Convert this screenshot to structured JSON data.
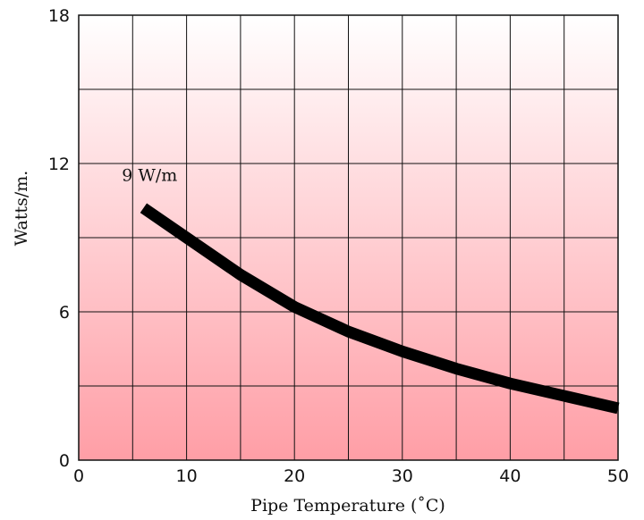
{
  "chart_data": {
    "type": "line",
    "title": "",
    "xlabel": "Pipe Temperature (˚C)",
    "ylabel": "Watts/m.",
    "xlim": [
      0,
      50
    ],
    "ylim": [
      0,
      18
    ],
    "x_ticks": [
      0,
      10,
      20,
      30,
      40,
      50
    ],
    "y_ticks": [
      0,
      6,
      12,
      18
    ],
    "grid": true,
    "series": [
      {
        "name": "9 W/m",
        "x": [
          6,
          10,
          15,
          20,
          25,
          30,
          35,
          40,
          45,
          50
        ],
        "y": [
          10.2,
          9.0,
          7.5,
          6.2,
          5.2,
          4.4,
          3.7,
          3.1,
          2.6,
          2.1
        ]
      }
    ],
    "annotations": [
      {
        "text": "9 W/m",
        "x": 4,
        "y": 11.3
      }
    ],
    "colors": {
      "line": "#000000",
      "grid": "#111111",
      "background_top": "#ffffff",
      "background_bottom": "#ff9ea6"
    }
  }
}
